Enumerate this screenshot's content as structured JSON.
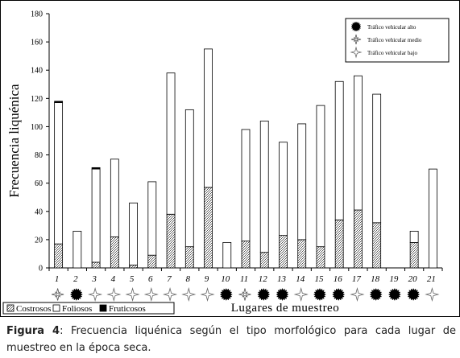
{
  "chart_data": {
    "type": "bar",
    "stacked": true,
    "xlabel": "Lugares de muestreo",
    "ylabel": "Frecuencia liquénica",
    "ylim": [
      0,
      180
    ],
    "yticks": [
      0,
      20,
      40,
      60,
      80,
      100,
      120,
      140,
      160,
      180
    ],
    "grid": false,
    "categories": [
      "1",
      "2",
      "3",
      "4",
      "5",
      "6",
      "7",
      "8",
      "9",
      "10",
      "11",
      "12",
      "13",
      "14",
      "15",
      "16",
      "17",
      "18",
      "19",
      "20",
      "21"
    ],
    "series": [
      {
        "name": "Costrosos",
        "pattern": "crosshatch",
        "values": [
          17,
          0,
          4,
          22,
          2,
          9,
          38,
          15,
          57,
          0,
          19,
          11,
          23,
          20,
          15,
          34,
          41,
          32,
          0,
          18,
          0
        ]
      },
      {
        "name": "Foliosos",
        "pattern": "white",
        "values": [
          100,
          26,
          66,
          55,
          44,
          52,
          100,
          97,
          98,
          18,
          79,
          93,
          66,
          82,
          100,
          98,
          95,
          91,
          0,
          8,
          70
        ]
      },
      {
        "name": "Fruticosos",
        "pattern": "black",
        "values": [
          1,
          0,
          1,
          0,
          0,
          0,
          0,
          0,
          0,
          0,
          0,
          0,
          0,
          0,
          0,
          0,
          0,
          0,
          0,
          0,
          0
        ]
      }
    ],
    "traffic": [
      "medio",
      "alto",
      "bajo",
      "bajo",
      "bajo",
      "bajo",
      "bajo",
      "bajo",
      "bajo",
      "alto",
      "medio",
      "alto",
      "alto",
      "bajo",
      "alto",
      "alto",
      "bajo",
      "alto",
      "alto",
      "alto",
      "bajo"
    ],
    "traffic_legend": [
      {
        "key": "alto",
        "label": "Tráfico vehicular alto"
      },
      {
        "key": "medio",
        "label": "Tráfico vehicular medio"
      },
      {
        "key": "bajo",
        "label": "Tráfico vehicular bajo"
      }
    ],
    "legend_position": "bottom-left"
  },
  "caption": {
    "label": "Figura 4",
    "text": ": Frecuencia liquénica según el tipo morfológico para cada lugar de muestreo en la época seca."
  }
}
